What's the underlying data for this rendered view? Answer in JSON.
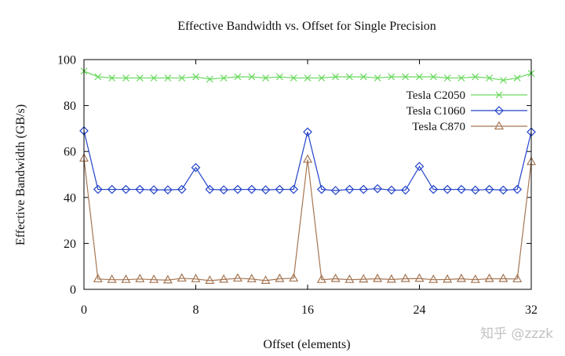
{
  "chart_data": {
    "type": "line",
    "title": "Effective Bandwidth vs. Offset for Single Precision",
    "xlabel": "Offset (elements)",
    "ylabel": "Effective Bandwidth (GB/s)",
    "xlim": [
      0,
      32
    ],
    "ylim": [
      0,
      100
    ],
    "xticks": [
      0,
      8,
      16,
      24,
      32
    ],
    "yticks": [
      0,
      20,
      40,
      60,
      80,
      100
    ],
    "grid": false,
    "legend": "top-right",
    "x": [
      0,
      1,
      2,
      3,
      4,
      5,
      6,
      7,
      8,
      9,
      10,
      11,
      12,
      13,
      14,
      15,
      16,
      17,
      18,
      19,
      20,
      21,
      22,
      23,
      24,
      25,
      26,
      27,
      28,
      29,
      30,
      31,
      32
    ],
    "series": [
      {
        "name": "Tesla C2050",
        "color": "#6ad95e",
        "marker": "cross",
        "values": [
          95,
          92.5,
          92,
          92,
          92,
          92,
          92,
          92,
          92.5,
          91.5,
          92,
          92.5,
          92.5,
          92,
          92.5,
          92,
          92,
          92,
          92.5,
          92.5,
          92.5,
          92,
          92.5,
          92.5,
          92.5,
          92.5,
          92,
          92,
          92.5,
          92,
          91,
          92,
          94
        ]
      },
      {
        "name": "Tesla C1060",
        "color": "#2242c8",
        "marker": "diamond",
        "values": [
          69,
          43.5,
          43.5,
          43.5,
          43.5,
          43.3,
          43.3,
          43.5,
          53,
          43.5,
          43.3,
          43.5,
          43.5,
          43.3,
          43.5,
          43.5,
          68.5,
          43.5,
          43,
          43.5,
          43.5,
          43.8,
          43.2,
          43.2,
          53.5,
          43.5,
          43.5,
          43.5,
          43.2,
          43.5,
          43.2,
          43.5,
          68.5
        ]
      },
      {
        "name": "Tesla C870",
        "color": "#a57653",
        "marker": "triangle",
        "values": [
          57,
          4.5,
          4.2,
          4.2,
          4.5,
          4.2,
          4,
          4.8,
          4.5,
          3.8,
          4.3,
          4.8,
          4.5,
          3.8,
          4.6,
          4.8,
          56.5,
          4.2,
          4.6,
          4.2,
          4.4,
          4.6,
          4.3,
          4.6,
          4.7,
          4.2,
          4.3,
          4.6,
          4.2,
          4.6,
          4.6,
          4.5,
          55.5
        ]
      }
    ]
  },
  "watermark": {
    "text": "知乎 @zzzk"
  }
}
